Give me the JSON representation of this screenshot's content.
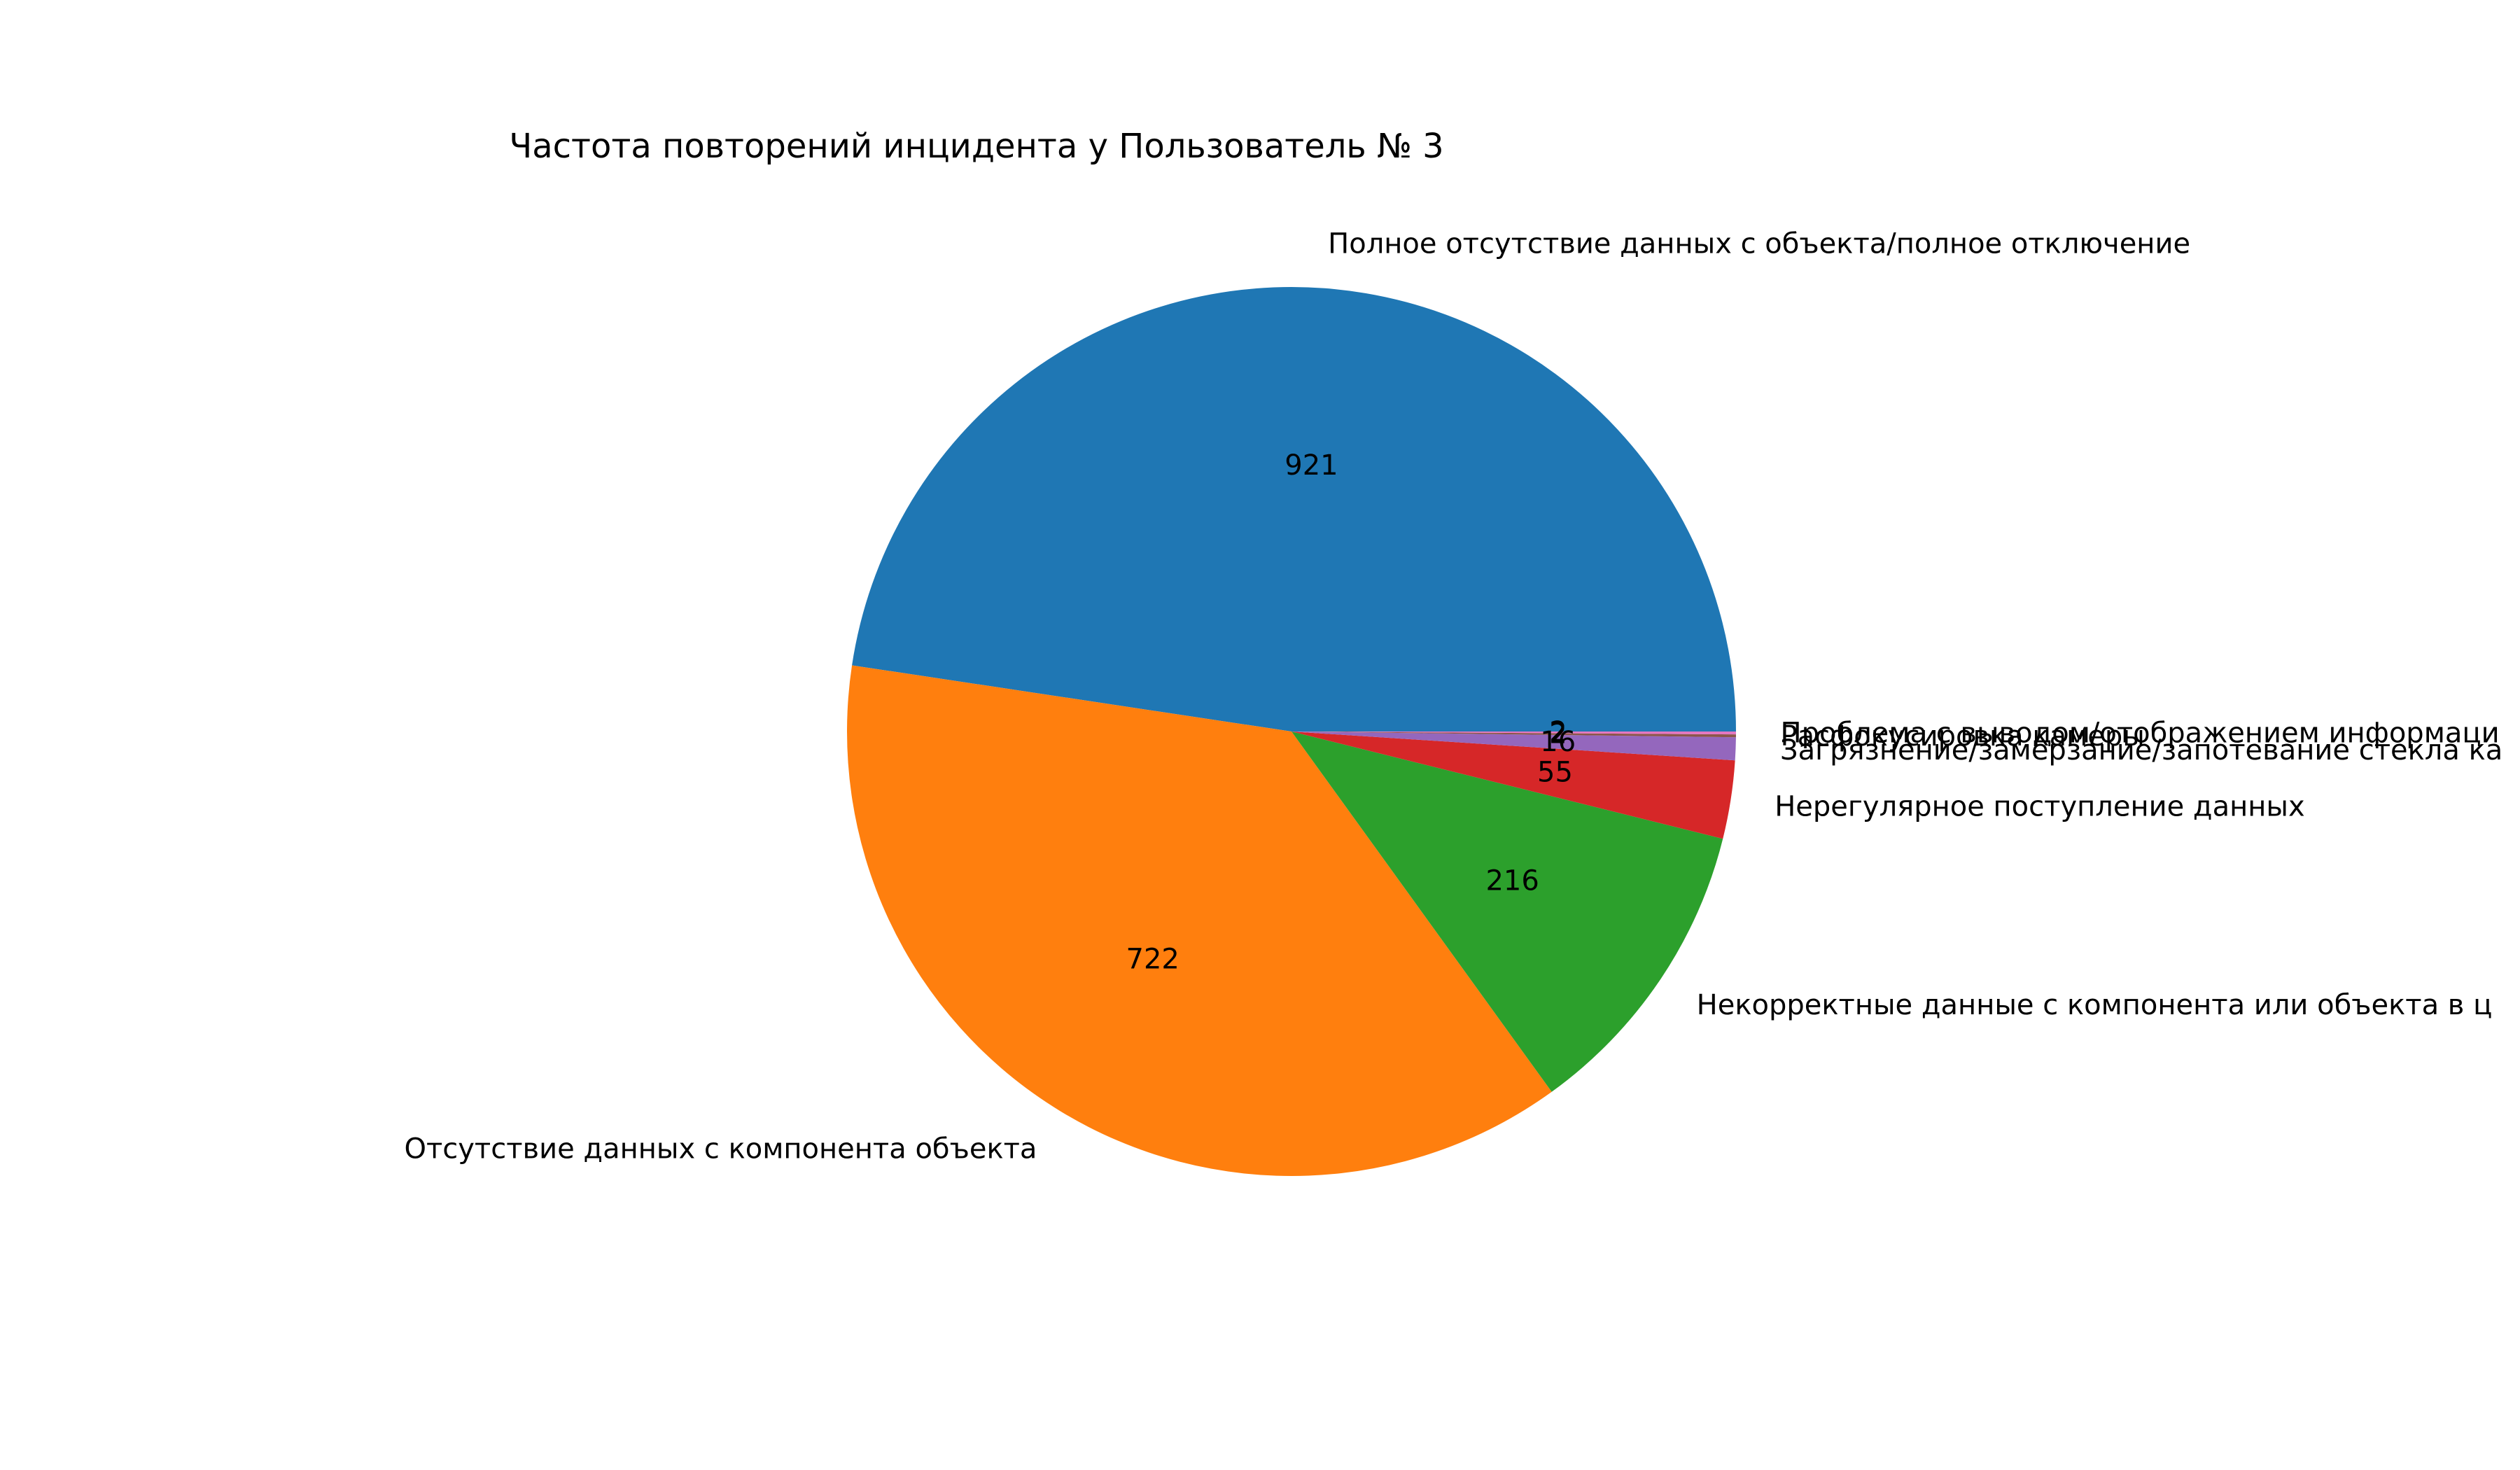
{
  "chart_data": {
    "type": "pie",
    "title": "Частота повторений инцидента у Пользователь № 3",
    "categories": [
      "Полное отсутствие данных с объекта/полное отключение",
      "Отсутствие данных с компонента объекта",
      "Некорректные данные с компонента или объекта в ц",
      "Нерегулярное поступление данных",
      "Загрязнение/замерзание/запотевание стекла ка",
      "Расфокусировка камеры",
      "Проблема с выводом/отображением информаци"
    ],
    "values": [
      921,
      722,
      216,
      55,
      16,
      2,
      2
    ],
    "value_labels": [
      "921",
      "722",
      "216",
      "55",
      "16",
      "2",
      "2"
    ],
    "colors": [
      "#1f77b4",
      "#ff7f0e",
      "#2ca02c",
      "#d62728",
      "#9467bd",
      "#8c564b",
      "#e377c2"
    ],
    "start_angle_deg": 0,
    "direction": "counterclockwise",
    "legend": "none"
  }
}
